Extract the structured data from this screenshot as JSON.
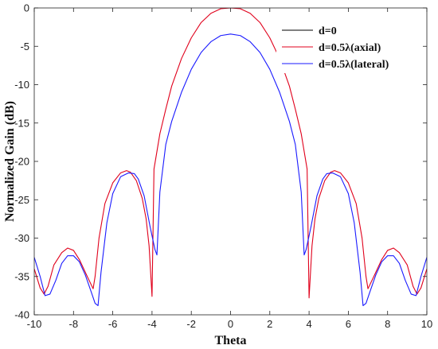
{
  "chart_data": {
    "type": "line",
    "title": "",
    "xlabel": "Theta",
    "ylabel": "Normalized Gain (dB)",
    "xlim": [
      -10,
      10
    ],
    "ylim": [
      -40,
      0
    ],
    "xticks": [
      "-10",
      "-8",
      "-6",
      "-4",
      "-2",
      "0",
      "2",
      "4",
      "6",
      "8",
      "10"
    ],
    "yticks": [
      "0",
      "-5",
      "-10",
      "-15",
      "-20",
      "-25",
      "-30",
      "-35",
      "-40"
    ],
    "grid": false,
    "legend_position": "top-right",
    "series": [
      {
        "name": "d=0",
        "color": "#000000",
        "x": [],
        "y": []
      },
      {
        "name": "d=0.5λ(axial)",
        "color": "#e0001b",
        "x": [
          -10,
          -9.7,
          -9.5,
          -9.3,
          -9,
          -8.6,
          -8.3,
          -8,
          -7.7,
          -7.3,
          -7.0,
          -6.9,
          -6.7,
          -6.4,
          -6.0,
          -5.6,
          -5.3,
          -5.1,
          -4.8,
          -4.5,
          -4.3,
          -4.15,
          -4.0,
          -3.9,
          -3.6,
          -3.3,
          -3.0,
          -2.5,
          -2.0,
          -1.5,
          -1.0,
          -0.5,
          0,
          0.5,
          1.0,
          1.5,
          2.0,
          2.5,
          3.0,
          3.3,
          3.6,
          3.9,
          4.0,
          4.15,
          4.3,
          4.5,
          4.8,
          5.1,
          5.3,
          5.6,
          6.0,
          6.4,
          6.7,
          6.9,
          7.0,
          7.3,
          7.7,
          8.0,
          8.3,
          8.6,
          9.0,
          9.3,
          9.5,
          9.7,
          10
        ],
        "y": [
          -34.0,
          -36.5,
          -37.3,
          -36.3,
          -33.5,
          -31.9,
          -31.3,
          -31.6,
          -32.8,
          -35.0,
          -36.6,
          -35.0,
          -30.0,
          -25.5,
          -22.8,
          -21.5,
          -21.2,
          -21.4,
          -22.5,
          -24.8,
          -27.5,
          -31.0,
          -37.6,
          -21.0,
          -16.4,
          -13.2,
          -10.2,
          -6.6,
          -3.9,
          -1.9,
          -0.7,
          -0.1,
          0.0,
          -0.1,
          -0.7,
          -1.9,
          -3.9,
          -6.6,
          -10.2,
          -13.2,
          -16.4,
          -21.0,
          -37.8,
          -31.0,
          -27.5,
          -24.8,
          -22.5,
          -21.4,
          -21.2,
          -21.5,
          -22.8,
          -25.5,
          -30.0,
          -35.0,
          -36.6,
          -35.0,
          -32.8,
          -31.6,
          -31.3,
          -31.9,
          -33.5,
          -36.3,
          -37.3,
          -36.5,
          -34.0
        ]
      },
      {
        "name": "d=0.5λ(lateral)",
        "color": "#1a1aff",
        "x": [
          -10,
          -9.7,
          -9.45,
          -9.2,
          -8.9,
          -8.6,
          -8.3,
          -8.0,
          -7.7,
          -7.4,
          -7.1,
          -6.9,
          -6.75,
          -6.6,
          -6.3,
          -6.0,
          -5.6,
          -5.2,
          -4.9,
          -4.7,
          -4.4,
          -4.1,
          -3.85,
          -3.75,
          -3.6,
          -3.3,
          -3.0,
          -2.5,
          -2.0,
          -1.5,
          -1.0,
          -0.5,
          0,
          0.5,
          1.0,
          1.5,
          2.0,
          2.5,
          3.0,
          3.3,
          3.6,
          3.75,
          3.85,
          4.1,
          4.4,
          4.7,
          4.9,
          5.2,
          5.6,
          6.0,
          6.3,
          6.6,
          6.75,
          6.9,
          7.1,
          7.4,
          7.7,
          8.0,
          8.3,
          8.6,
          8.9,
          9.2,
          9.45,
          9.7,
          10
        ],
        "y": [
          -32.5,
          -35.0,
          -37.5,
          -37.3,
          -35.5,
          -33.3,
          -32.3,
          -32.3,
          -33.1,
          -34.8,
          -37.0,
          -38.5,
          -38.8,
          -34.5,
          -28.0,
          -24.2,
          -22.0,
          -21.5,
          -21.6,
          -22.3,
          -24.5,
          -28.5,
          -31.5,
          -32.2,
          -24.0,
          -17.8,
          -14.8,
          -11.0,
          -8.0,
          -5.8,
          -4.4,
          -3.6,
          -3.4,
          -3.6,
          -4.4,
          -5.8,
          -8.0,
          -11.0,
          -14.8,
          -17.8,
          -24.0,
          -32.2,
          -31.5,
          -28.5,
          -24.5,
          -22.3,
          -21.6,
          -21.5,
          -22.0,
          -24.2,
          -28.0,
          -34.5,
          -38.8,
          -38.5,
          -37.0,
          -34.8,
          -33.1,
          -32.3,
          -32.3,
          -33.3,
          -35.5,
          -37.3,
          -37.5,
          -35.0,
          -32.5
        ]
      }
    ]
  }
}
